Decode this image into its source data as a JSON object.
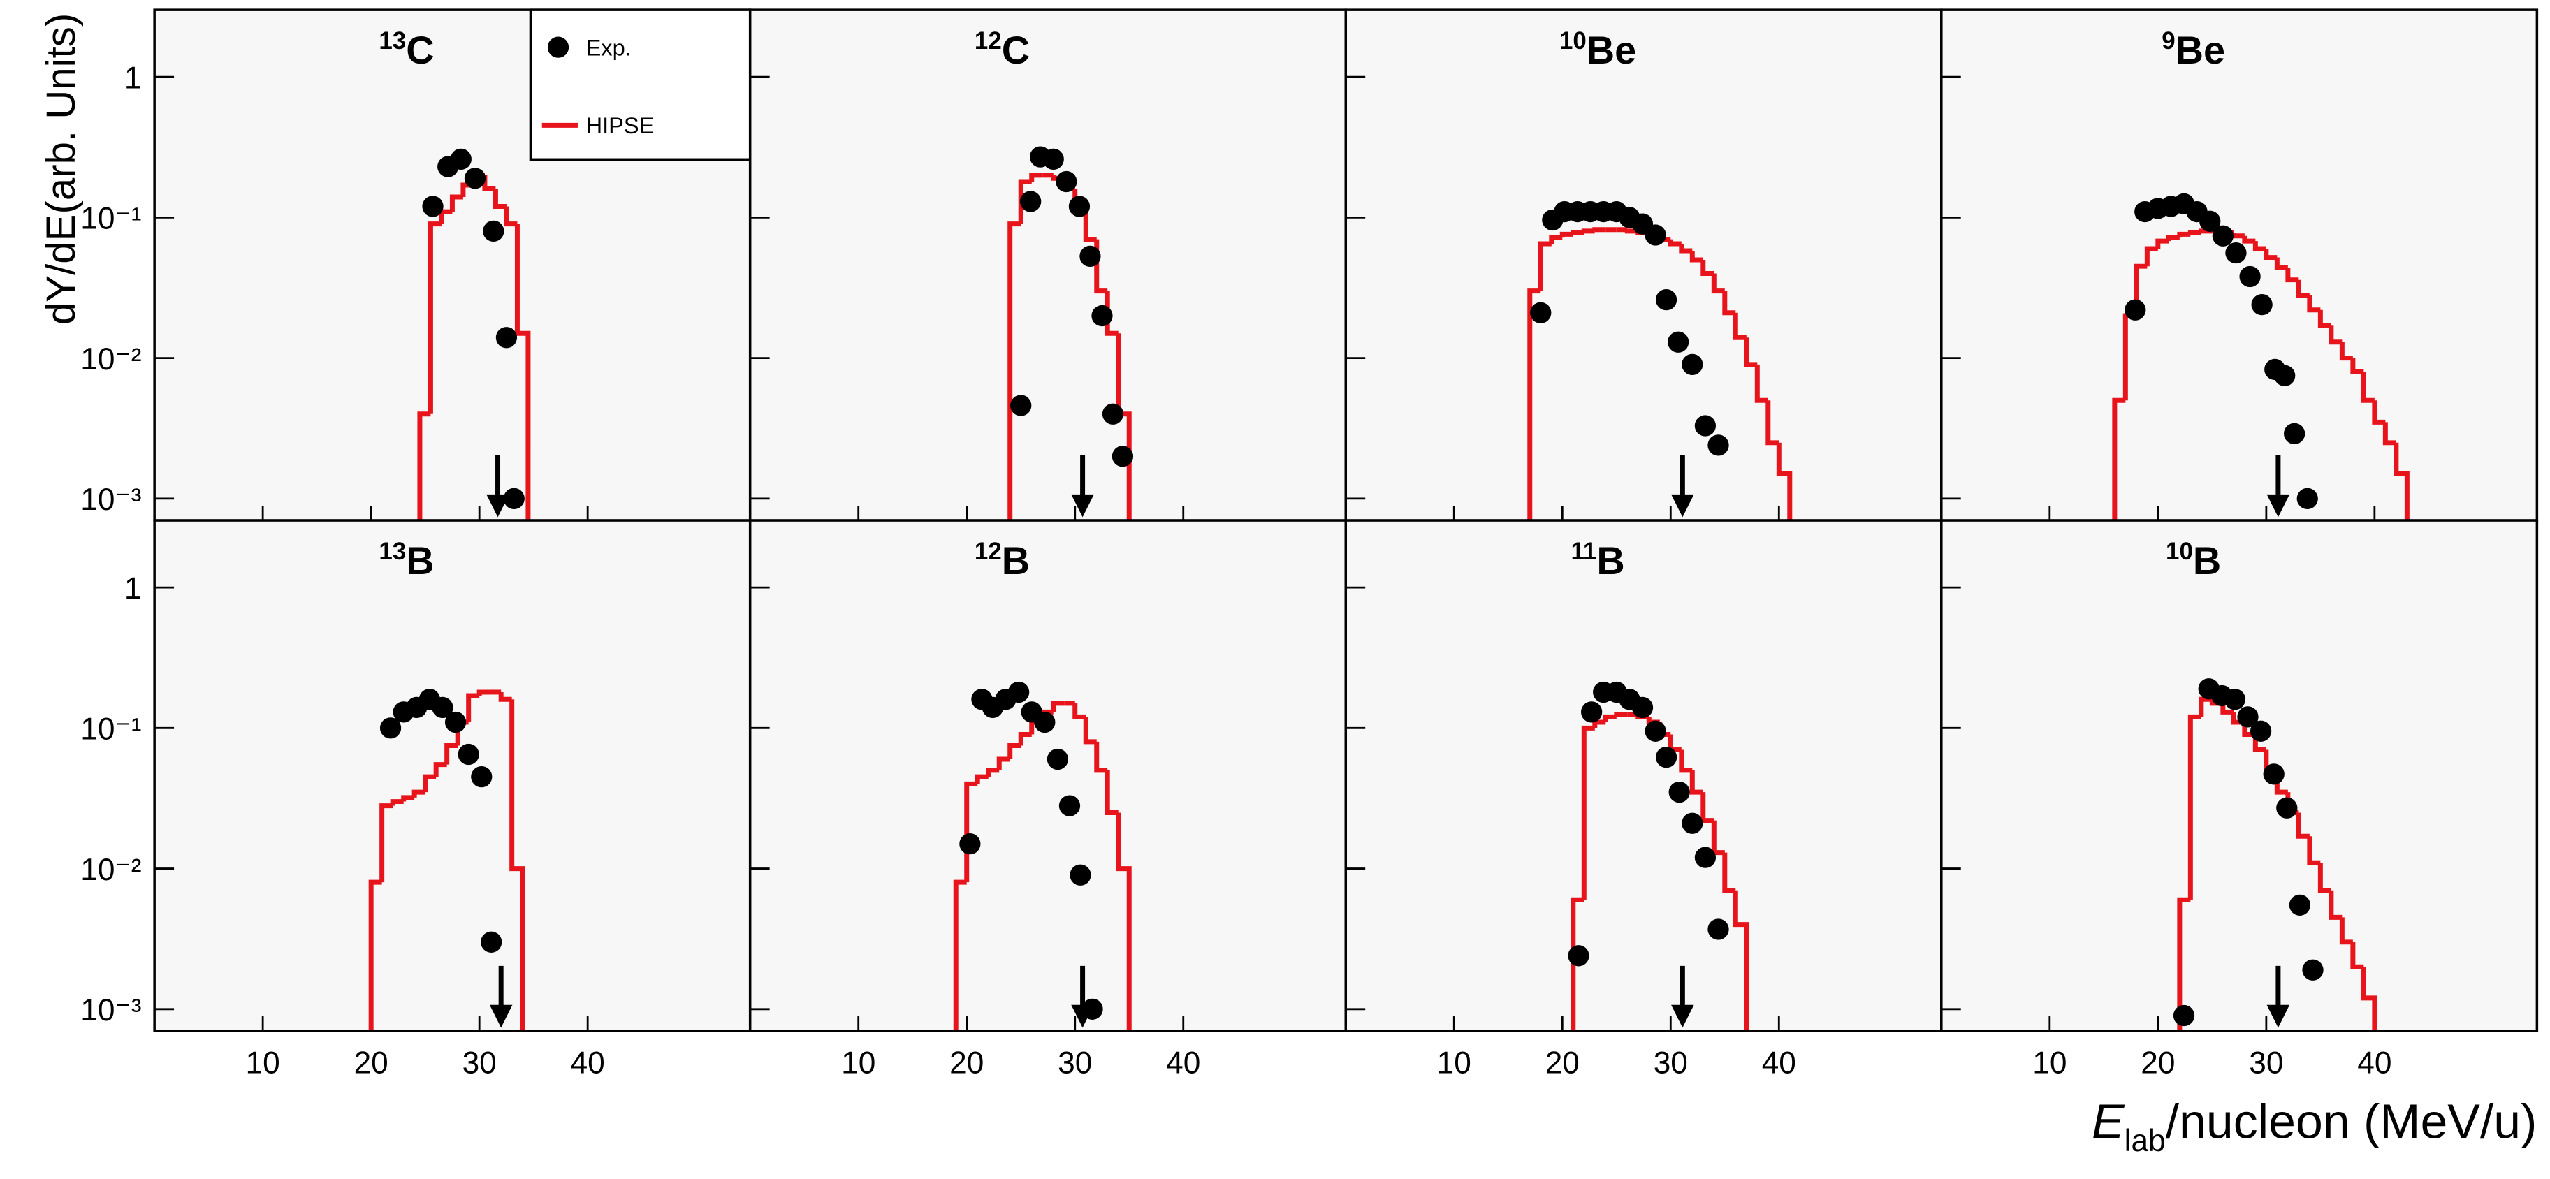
{
  "chart_data": {
    "type": "panel-grid",
    "rows": 2,
    "cols": 4,
    "log_y": true,
    "xlim": [
      0,
      55
    ],
    "xticks": [
      10,
      20,
      30,
      40
    ],
    "ylim": [
      0.0007,
      3
    ],
    "yticks": [
      1,
      {
        "value": 0.1,
        "label": "10⁻¹"
      },
      {
        "value": 0.01,
        "label": "10⁻²"
      },
      {
        "value": 0.001,
        "label": "10⁻³"
      }
    ],
    "ylabel": "dY/dE(arb. Units)",
    "xlabel": {
      "var": "E",
      "sub": "lab",
      "rest": "/nucleon (MeV/u)"
    },
    "legend": "upper right",
    "series": [
      {
        "name": "Exp.",
        "color": "#000000",
        "type": "scatter"
      },
      {
        "name": "HIPSE",
        "color": "#e8141c",
        "type": "histogram"
      }
    ],
    "panels": [
      {
        "mass": "13",
        "element": "C",
        "arrow": 31.7,
        "exp": {
          "x": [
            25.7,
            27.1,
            28.3,
            29.6,
            31.3,
            32.5,
            33.2
          ],
          "values": [
            0.12,
            0.23,
            0.26,
            0.19,
            0.08,
            0.014,
            0.001
          ]
        },
        "hipse": {
          "bins": [
            24.5,
            25.5,
            26.5,
            27.5,
            28.5,
            29.5,
            30.5,
            31.5,
            32.5,
            33.5,
            34.5
          ],
          "values": [
            0.004,
            0.09,
            0.11,
            0.14,
            0.17,
            0.2,
            0.16,
            0.12,
            0.09,
            0.015
          ]
        }
      },
      {
        "mass": "12",
        "element": "C",
        "arrow": 30.7,
        "exp": {
          "x": [
            25.0,
            25.9,
            26.8,
            28.0,
            29.2,
            30.4,
            31.4,
            32.5,
            33.5,
            34.4
          ],
          "values": [
            0.0046,
            0.13,
            0.27,
            0.26,
            0.18,
            0.12,
            0.053,
            0.02,
            0.004,
            0.002
          ]
        },
        "hipse": {
          "bins": [
            24,
            25,
            26,
            27,
            28,
            29,
            30,
            31,
            32,
            33,
            34,
            35
          ],
          "values": [
            0.09,
            0.18,
            0.2,
            0.2,
            0.19,
            0.16,
            0.12,
            0.07,
            0.03,
            0.015,
            0.004
          ]
        }
      },
      {
        "mass": "10",
        "element": "Be",
        "arrow": 31.1,
        "exp": {
          "x": [
            18.0,
            19.1,
            20.2,
            21.4,
            22.6,
            23.8,
            25.0,
            26.2,
            27.4,
            28.6,
            29.6,
            30.7,
            32.0,
            33.2,
            34.4
          ],
          "values": [
            0.021,
            0.096,
            0.11,
            0.11,
            0.11,
            0.11,
            0.11,
            0.1,
            0.09,
            0.075,
            0.026,
            0.013,
            0.009,
            0.0033,
            0.0024
          ]
        },
        "hipse": {
          "bins": [
            17,
            18,
            19,
            20,
            21,
            22,
            23,
            24,
            25,
            26,
            27,
            28,
            29,
            30,
            31,
            32,
            33,
            34,
            35,
            36,
            37,
            38,
            39,
            40,
            41
          ],
          "values": [
            0.03,
            0.065,
            0.072,
            0.076,
            0.078,
            0.08,
            0.082,
            0.082,
            0.082,
            0.08,
            0.078,
            0.075,
            0.07,
            0.065,
            0.058,
            0.05,
            0.04,
            0.03,
            0.021,
            0.014,
            0.009,
            0.005,
            0.0025,
            0.0015
          ]
        }
      },
      {
        "mass": "9",
        "element": "Be",
        "arrow": 31.1,
        "exp": {
          "x": [
            17.9,
            18.8,
            20.0,
            21.2,
            22.4,
            23.6,
            24.8,
            26.0,
            27.2,
            28.5,
            29.6,
            30.8,
            31.7,
            32.6,
            33.8
          ],
          "values": [
            0.022,
            0.11,
            0.116,
            0.12,
            0.125,
            0.11,
            0.094,
            0.074,
            0.056,
            0.038,
            0.024,
            0.0083,
            0.0075,
            0.0029,
            0.001
          ]
        },
        "hipse": {
          "bins": [
            16,
            17,
            18,
            19,
            20,
            21,
            22,
            23,
            24,
            25,
            26,
            27,
            28,
            29,
            30,
            31,
            32,
            33,
            34,
            35,
            36,
            37,
            38,
            39,
            40,
            41,
            42,
            43
          ],
          "values": [
            0.005,
            0.02,
            0.045,
            0.06,
            0.068,
            0.072,
            0.076,
            0.078,
            0.08,
            0.08,
            0.078,
            0.074,
            0.068,
            0.06,
            0.052,
            0.044,
            0.036,
            0.028,
            0.022,
            0.017,
            0.013,
            0.01,
            0.008,
            0.005,
            0.0035,
            0.0025,
            0.0015
          ]
        }
      },
      {
        "mass": "13",
        "element": "B",
        "arrow": 32.0,
        "exp": {
          "x": [
            21.8,
            23.0,
            24.2,
            25.4,
            26.6,
            27.8,
            29.0,
            30.2,
            31.1
          ],
          "values": [
            0.1,
            0.13,
            0.14,
            0.16,
            0.14,
            0.11,
            0.065,
            0.045,
            0.003
          ]
        },
        "hipse": {
          "bins": [
            20,
            21,
            22,
            23,
            24,
            25,
            26,
            27,
            28,
            29,
            30,
            31,
            32,
            33,
            34
          ],
          "values": [
            0.008,
            0.028,
            0.03,
            0.032,
            0.035,
            0.045,
            0.055,
            0.075,
            0.11,
            0.17,
            0.18,
            0.18,
            0.16,
            0.01
          ]
        }
      },
      {
        "mass": "12",
        "element": "B",
        "arrow": 30.7,
        "exp": {
          "x": [
            20.3,
            21.4,
            22.4,
            23.6,
            24.8,
            26.0,
            27.2,
            28.4,
            29.5,
            30.5,
            31.6
          ],
          "values": [
            0.015,
            0.16,
            0.14,
            0.16,
            0.18,
            0.13,
            0.11,
            0.06,
            0.028,
            0.009,
            0.001
          ]
        },
        "hipse": {
          "bins": [
            19,
            20,
            21,
            22,
            23,
            24,
            25,
            26,
            27,
            28,
            29,
            30,
            31,
            32,
            33,
            34,
            35
          ],
          "values": [
            0.008,
            0.04,
            0.045,
            0.05,
            0.06,
            0.075,
            0.09,
            0.11,
            0.13,
            0.15,
            0.15,
            0.12,
            0.08,
            0.05,
            0.025,
            0.01
          ]
        }
      },
      {
        "mass": "11",
        "element": "B",
        "arrow": 31.1,
        "exp": {
          "x": [
            21.5,
            22.7,
            23.8,
            25.0,
            26.2,
            27.4,
            28.6,
            29.6,
            30.8,
            32.0,
            33.2,
            34.4
          ],
          "values": [
            0.0024,
            0.13,
            0.18,
            0.18,
            0.16,
            0.14,
            0.095,
            0.062,
            0.035,
            0.021,
            0.012,
            0.0037
          ]
        },
        "hipse": {
          "bins": [
            21,
            22,
            23,
            24,
            25,
            26,
            27,
            28,
            29,
            30,
            31,
            32,
            33,
            34,
            35,
            36,
            37
          ],
          "values": [
            0.006,
            0.1,
            0.11,
            0.12,
            0.125,
            0.125,
            0.12,
            0.11,
            0.09,
            0.07,
            0.05,
            0.035,
            0.022,
            0.013,
            0.007,
            0.004
          ]
        }
      },
      {
        "mass": "10",
        "element": "B",
        "arrow": 31.1,
        "exp": {
          "x": [
            22.4,
            24.7,
            25.9,
            27.1,
            28.3,
            29.5,
            30.7,
            31.9,
            33.1,
            34.3
          ],
          "values": [
            0.0009,
            0.19,
            0.17,
            0.16,
            0.12,
            0.095,
            0.047,
            0.027,
            0.0055,
            0.0019
          ]
        },
        "hipse": {
          "bins": [
            22,
            23,
            24,
            25,
            26,
            27,
            28,
            29,
            30,
            31,
            32,
            33,
            34,
            35,
            36,
            37,
            38,
            39,
            40
          ],
          "values": [
            0.006,
            0.12,
            0.16,
            0.15,
            0.13,
            0.11,
            0.09,
            0.07,
            0.05,
            0.035,
            0.025,
            0.017,
            0.011,
            0.007,
            0.0045,
            0.003,
            0.002,
            0.0012
          ]
        }
      }
    ]
  }
}
